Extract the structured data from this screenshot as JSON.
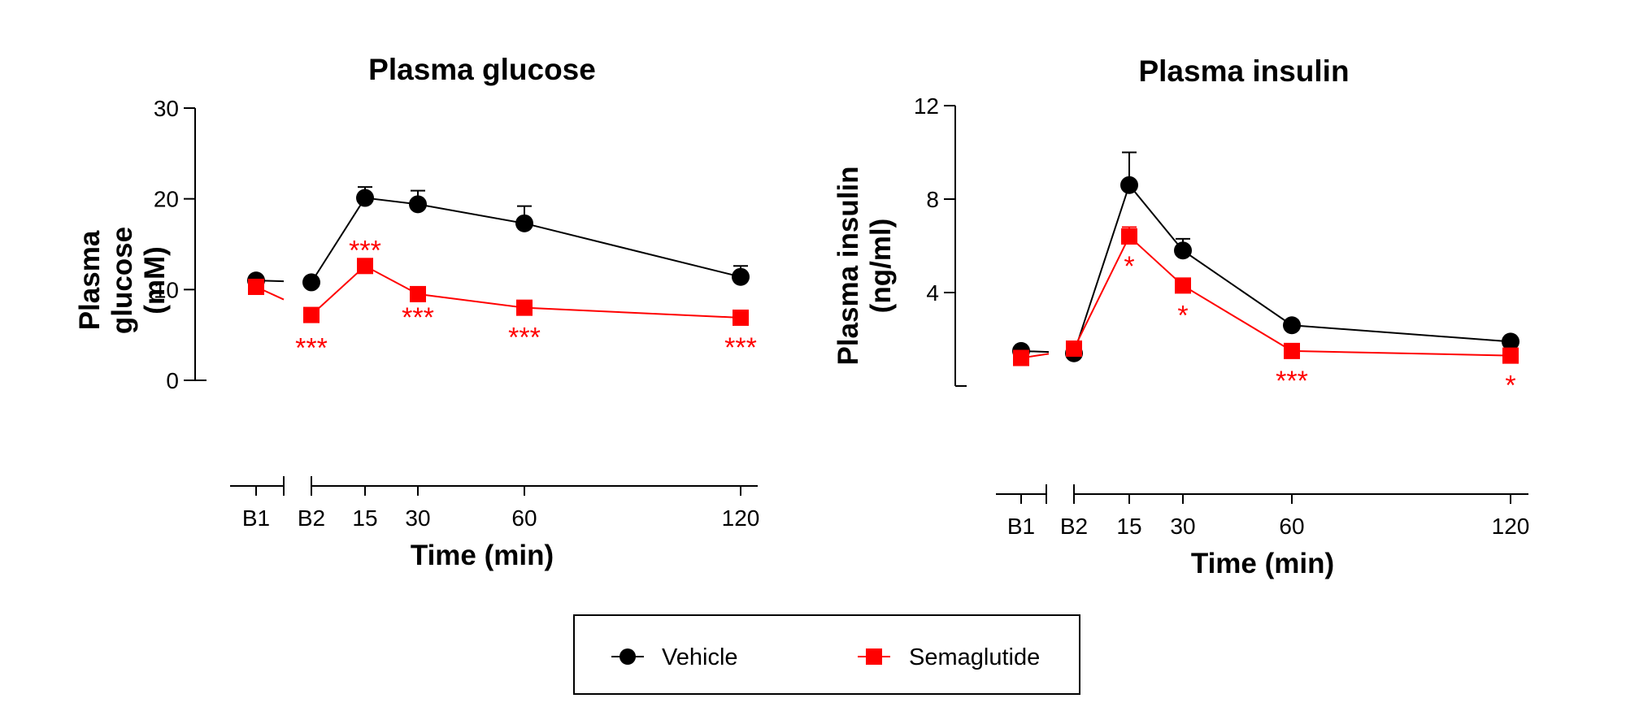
{
  "colors": {
    "vehicle": "#000000",
    "semaglutide": "#ff0000"
  },
  "legend": [
    {
      "label": "Vehicle",
      "marker": "circle",
      "color": "#000000"
    },
    {
      "label": "Semaglutide",
      "marker": "square",
      "color": "#ff0000"
    }
  ],
  "chart_data": [
    {
      "type": "line",
      "title": "Plasma glucose",
      "ylabel": "Plasma glucose (mM)",
      "ylabel_lines": [
        "Plasma",
        "glucose",
        "(mM)"
      ],
      "xlabel": "Time (min)",
      "categories": [
        "B1",
        "B2",
        "15",
        "30",
        "60",
        "120"
      ],
      "ylim": [
        0,
        30
      ],
      "yticks": [
        0,
        10,
        20,
        30
      ],
      "series": [
        {
          "name": "Vehicle",
          "color": "#000000",
          "marker": "circle",
          "values": [
            11.0,
            10.8,
            20.1,
            19.4,
            17.3,
            11.4
          ],
          "errors": [
            0.4,
            0.5,
            1.2,
            1.5,
            1.9,
            1.2
          ]
        },
        {
          "name": "Semaglutide",
          "color": "#ff0000",
          "marker": "square",
          "values": [
            10.3,
            7.2,
            12.6,
            9.5,
            8.0,
            6.9
          ],
          "errors": [
            0.3,
            0.3,
            0.6,
            0.4,
            0.3,
            0.4
          ]
        }
      ],
      "annotations": [
        "",
        "***",
        "***",
        "***",
        "***",
        "***"
      ]
    },
    {
      "type": "line",
      "title": "Plasma insulin",
      "ylabel": "Plasma insulin (ng/ml)",
      "ylabel_lines": [
        "Plasma insulin",
        "(ng/ml)"
      ],
      "xlabel": "Time (min)",
      "categories": [
        "B1",
        "B2",
        "15",
        "30",
        "60",
        "120"
      ],
      "ylim": [
        0,
        12
      ],
      "yticks": [
        4,
        8,
        12
      ],
      "series": [
        {
          "name": "Vehicle",
          "color": "#000000",
          "marker": "circle",
          "values": [
            1.5,
            1.4,
            8.6,
            5.8,
            2.6,
            1.9
          ],
          "errors": [
            0.1,
            0.1,
            1.4,
            0.5,
            0.2,
            0.1
          ]
        },
        {
          "name": "Semaglutide",
          "color": "#ff0000",
          "marker": "square",
          "values": [
            1.2,
            1.6,
            6.4,
            4.3,
            1.5,
            1.3
          ],
          "errors": [
            0.1,
            0.1,
            0.4,
            0.3,
            0.1,
            0.1
          ]
        }
      ],
      "annotations": [
        "",
        "",
        "*",
        "*",
        "***",
        "*"
      ]
    }
  ]
}
